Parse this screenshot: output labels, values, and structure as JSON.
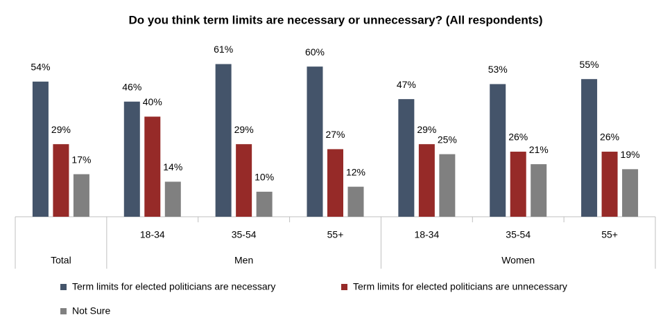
{
  "chart_data": {
    "type": "bar",
    "title": "Do you think term limits are necessary or unnecessary? (All respondents)",
    "category_groups": [
      {
        "name": "Total",
        "categories": [
          null
        ]
      },
      {
        "name": "Men",
        "categories": [
          "18-34",
          "35-54",
          "55+"
        ]
      },
      {
        "name": "Women",
        "categories": [
          "18-34",
          "35-54",
          "55+"
        ]
      }
    ],
    "series": [
      {
        "name": "Term limits for elected politicians are necessary",
        "color": "#44546a",
        "values": [
          54,
          46,
          61,
          60,
          47,
          53,
          55
        ],
        "value_labels": [
          "54%",
          "46%",
          "61%",
          "60%",
          "47%",
          "53%",
          "55%"
        ]
      },
      {
        "name": "Term limits for elected politicians are unnecessary",
        "color": "#962a28",
        "values": [
          29,
          40,
          29,
          27,
          29,
          26,
          26
        ],
        "value_labels": [
          "29%",
          "40%",
          "29%",
          "27%",
          "29%",
          "26%",
          "26%"
        ]
      },
      {
        "name": "Not Sure",
        "color": "#808080",
        "values": [
          17,
          14,
          10,
          12,
          25,
          21,
          19
        ],
        "value_labels": [
          "17%",
          "14%",
          "10%",
          "12%",
          "25%",
          "21%",
          "19%"
        ]
      }
    ],
    "ylim": [
      0,
      70
    ]
  }
}
